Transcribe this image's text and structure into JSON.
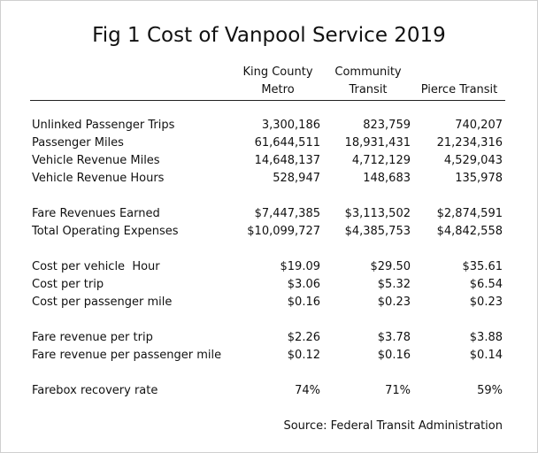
{
  "title": "Fig 1 Cost of Vanpool Service 2019",
  "columns": [
    {
      "line1": "King County",
      "line2": "Metro"
    },
    {
      "line1": "Community",
      "line2": "Transit"
    },
    {
      "line1": "",
      "line2": "Pierce Transit"
    }
  ],
  "rows": [
    {
      "label": "Unlinked Passenger Trips",
      "values": [
        "3,300,186",
        "823,759",
        "740,207"
      ]
    },
    {
      "label": "Passenger Miles",
      "values": [
        "61,644,511",
        "18,931,431",
        "21,234,316"
      ]
    },
    {
      "label": "Vehicle Revenue Miles",
      "values": [
        "14,648,137",
        "4,712,129",
        "4,529,043"
      ]
    },
    {
      "label": "Vehicle Revenue Hours",
      "values": [
        "528,947",
        "148,683",
        "135,978"
      ]
    },
    {
      "label": "Fare Revenues Earned",
      "values": [
        "$7,447,385",
        "$3,113,502",
        "$2,874,591"
      ]
    },
    {
      "label": "Total Operating Expenses",
      "values": [
        "$10,099,727",
        "$4,385,753",
        "$4,842,558"
      ]
    },
    {
      "label": "Cost per vehicle  Hour",
      "values": [
        "$19.09",
        "$29.50",
        "$35.61"
      ]
    },
    {
      "label": "Cost per trip",
      "values": [
        "$3.06",
        "$5.32",
        "$6.54"
      ]
    },
    {
      "label": "Cost per passenger mile",
      "values": [
        "$0.16",
        "$0.23",
        "$0.23"
      ]
    },
    {
      "label": "Fare revenue per trip",
      "values": [
        "$2.26",
        "$3.78",
        "$3.88"
      ]
    },
    {
      "label": "Fare revenue per passenger mile",
      "values": [
        "$0.12",
        "$0.16",
        "$0.14"
      ]
    },
    {
      "label": "Farebox recovery rate",
      "values": [
        "74%",
        "71%",
        "59%"
      ]
    }
  ],
  "source": "Source: Federal Transit Administration"
}
